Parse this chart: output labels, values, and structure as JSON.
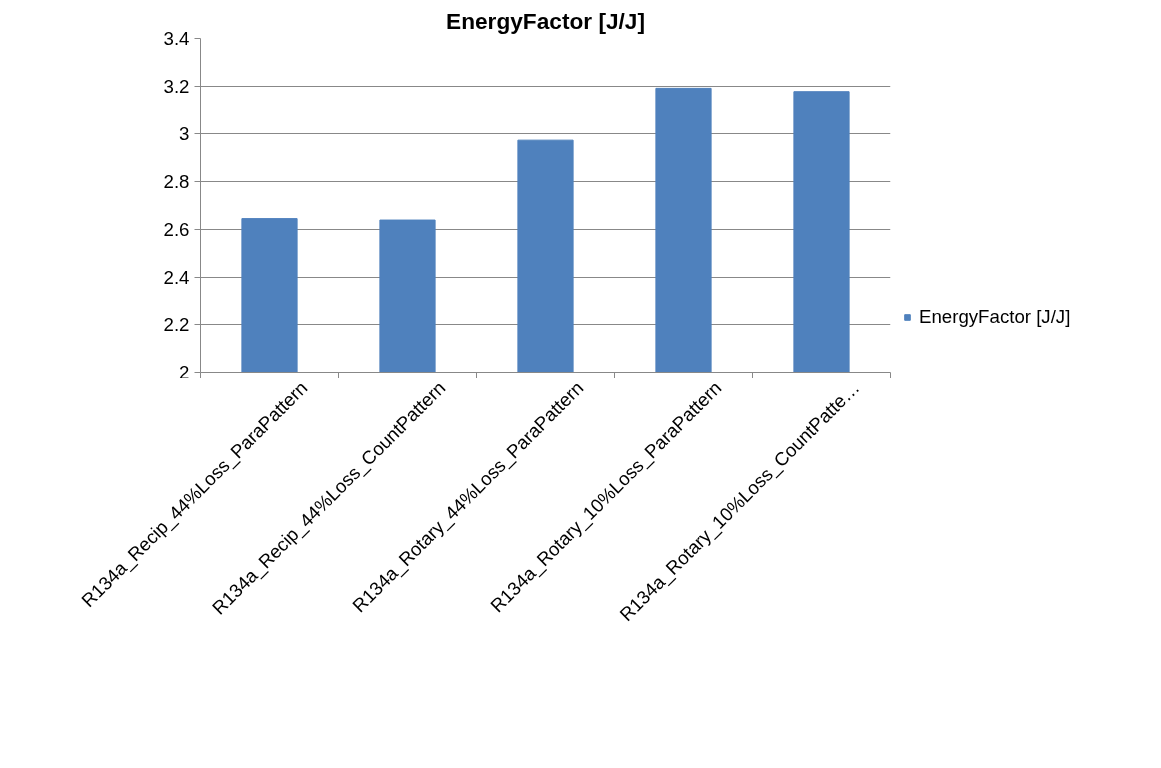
{
  "chart_data": {
    "type": "bar",
    "title": "EnergyFactor [J/J]",
    "categories": [
      "R134a_Recip_44%Loss_ParaPattern",
      "R134a_Recip_44%Loss_CountPattern",
      "R134a_Rotary_44%Loss_ParaPattern",
      "R134a_Rotary_10%Loss_ParaPattern",
      "R134a_Rotary_10%Loss_CountPatte…"
    ],
    "series": [
      {
        "name": "EnergyFactor [J/J]",
        "color": "#4f81bd",
        "values": [
          2.645,
          2.639,
          2.974,
          3.191,
          3.177
        ]
      }
    ],
    "ylim": [
      2,
      3.4
    ],
    "yticks": [
      2,
      2.2,
      2.4,
      2.6,
      2.8,
      3,
      3.2,
      3.4
    ],
    "grid": "y",
    "legend": "right"
  }
}
